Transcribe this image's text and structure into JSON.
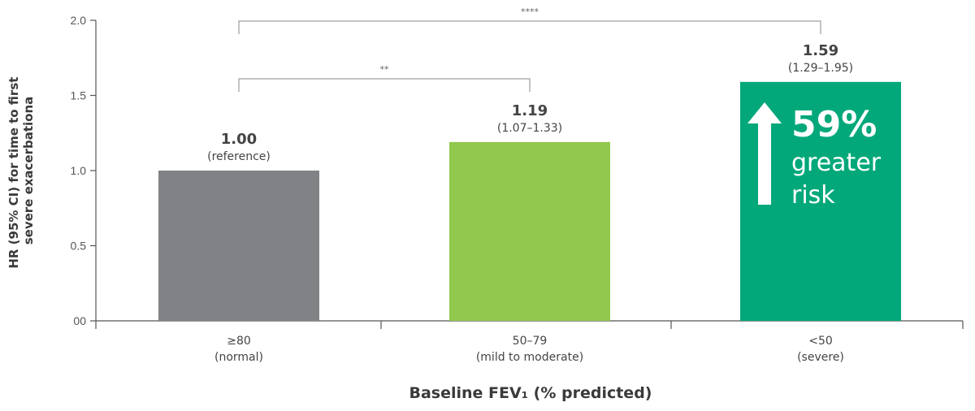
{
  "chart_data": {
    "type": "bar",
    "title": "",
    "xlabel": "Baseline FEV₁ (% predicted)",
    "ylabel_lines": [
      "HR (95% CI) for time to first",
      "severe exacerbationa"
    ],
    "ylim": [
      0,
      2.0
    ],
    "y_ticks": [
      {
        "value": 0,
        "label": "00"
      },
      {
        "value": 0.5,
        "label": "0.5"
      },
      {
        "value": 1.0,
        "label": "1.0"
      },
      {
        "value": 1.5,
        "label": "1.5"
      },
      {
        "value": 2.0,
        "label": "2.0"
      }
    ],
    "categories": [
      {
        "line1": "≥80",
        "line2": "(normal)"
      },
      {
        "line1": "50–79",
        "line2": "(mild to moderate)"
      },
      {
        "line1": "<50",
        "line2": "(severe)"
      }
    ],
    "values": [
      1.0,
      1.19,
      1.59
    ],
    "value_labels": [
      "1.00",
      "1.19",
      "1.59"
    ],
    "ci_labels": [
      "(reference)",
      "(1.07–1.33)",
      "(1.29–1.95)"
    ],
    "colors": [
      "#808285",
      "#92c84e",
      "#02a87a"
    ],
    "significance": [
      {
        "from": 0,
        "to": 1,
        "label": "**"
      },
      {
        "from": 0,
        "to": 2,
        "label": "****"
      }
    ],
    "callout": {
      "bar_index": 2,
      "big": "59%",
      "line1": "greater",
      "line2": "risk"
    },
    "grid": false
  }
}
